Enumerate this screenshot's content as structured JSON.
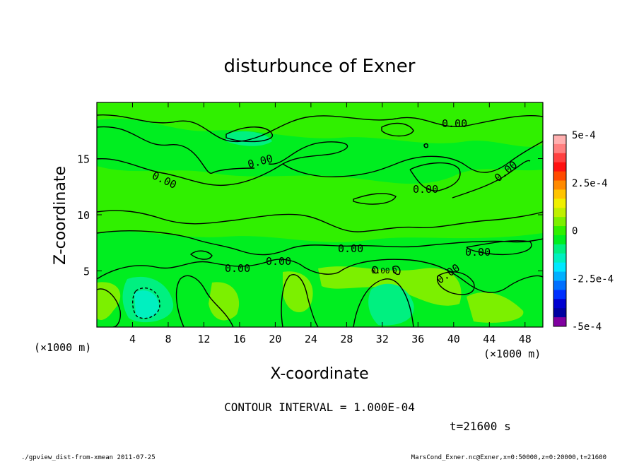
{
  "chart_data": {
    "type": "heatmap",
    "title": "disturbunce of Exner",
    "xlabel": "X-coordinate",
    "ylabel": "Z-coordinate",
    "x_unit_left": "(×1000 m)",
    "x_unit_right": "(×1000 m)",
    "xlim": [
      0,
      50
    ],
    "ylim": [
      0,
      20
    ],
    "x_ticks": [
      4,
      8,
      12,
      16,
      20,
      24,
      28,
      32,
      36,
      40,
      44,
      48
    ],
    "y_ticks": [
      5,
      10,
      15
    ],
    "colorbar": {
      "min": -0.0005,
      "max": 0.0005,
      "tick_labels": [
        "5e-4",
        "2.5e-4",
        "0",
        "-2.5e-4",
        "-5e-4"
      ],
      "tick_values": [
        0.0005,
        0.00025,
        0,
        -0.00025,
        -0.0005
      ],
      "colors": [
        "#ffb0b0",
        "#ff8080",
        "#ff4040",
        "#ff1010",
        "#ff4a00",
        "#ff8a00",
        "#ffc400",
        "#f0f000",
        "#c0f000",
        "#7cf000",
        "#30f000",
        "#00ee20",
        "#00f080",
        "#00f0c0",
        "#00e8ff",
        "#00b0ff",
        "#0070ff",
        "#0030ff",
        "#0000d0",
        "#0000a0",
        "#8000a0"
      ]
    },
    "contour_interval_text": "CONTOUR INTERVAL = 1.000E-04",
    "contour_labels": [
      "0.00",
      "0.00",
      "0.00",
      "0.00",
      "0.00",
      "0.00",
      "0.00",
      "0.00",
      "0.00",
      "0.00",
      "0.00",
      "0"
    ],
    "time_text": "t=21600  s"
  },
  "footer": {
    "left": "./gpview_dist-from-xmean  2011-07-25",
    "right": "MarsCond_Exner.nc@Exner,x=0:50000,z=0:20000,t=21600"
  }
}
